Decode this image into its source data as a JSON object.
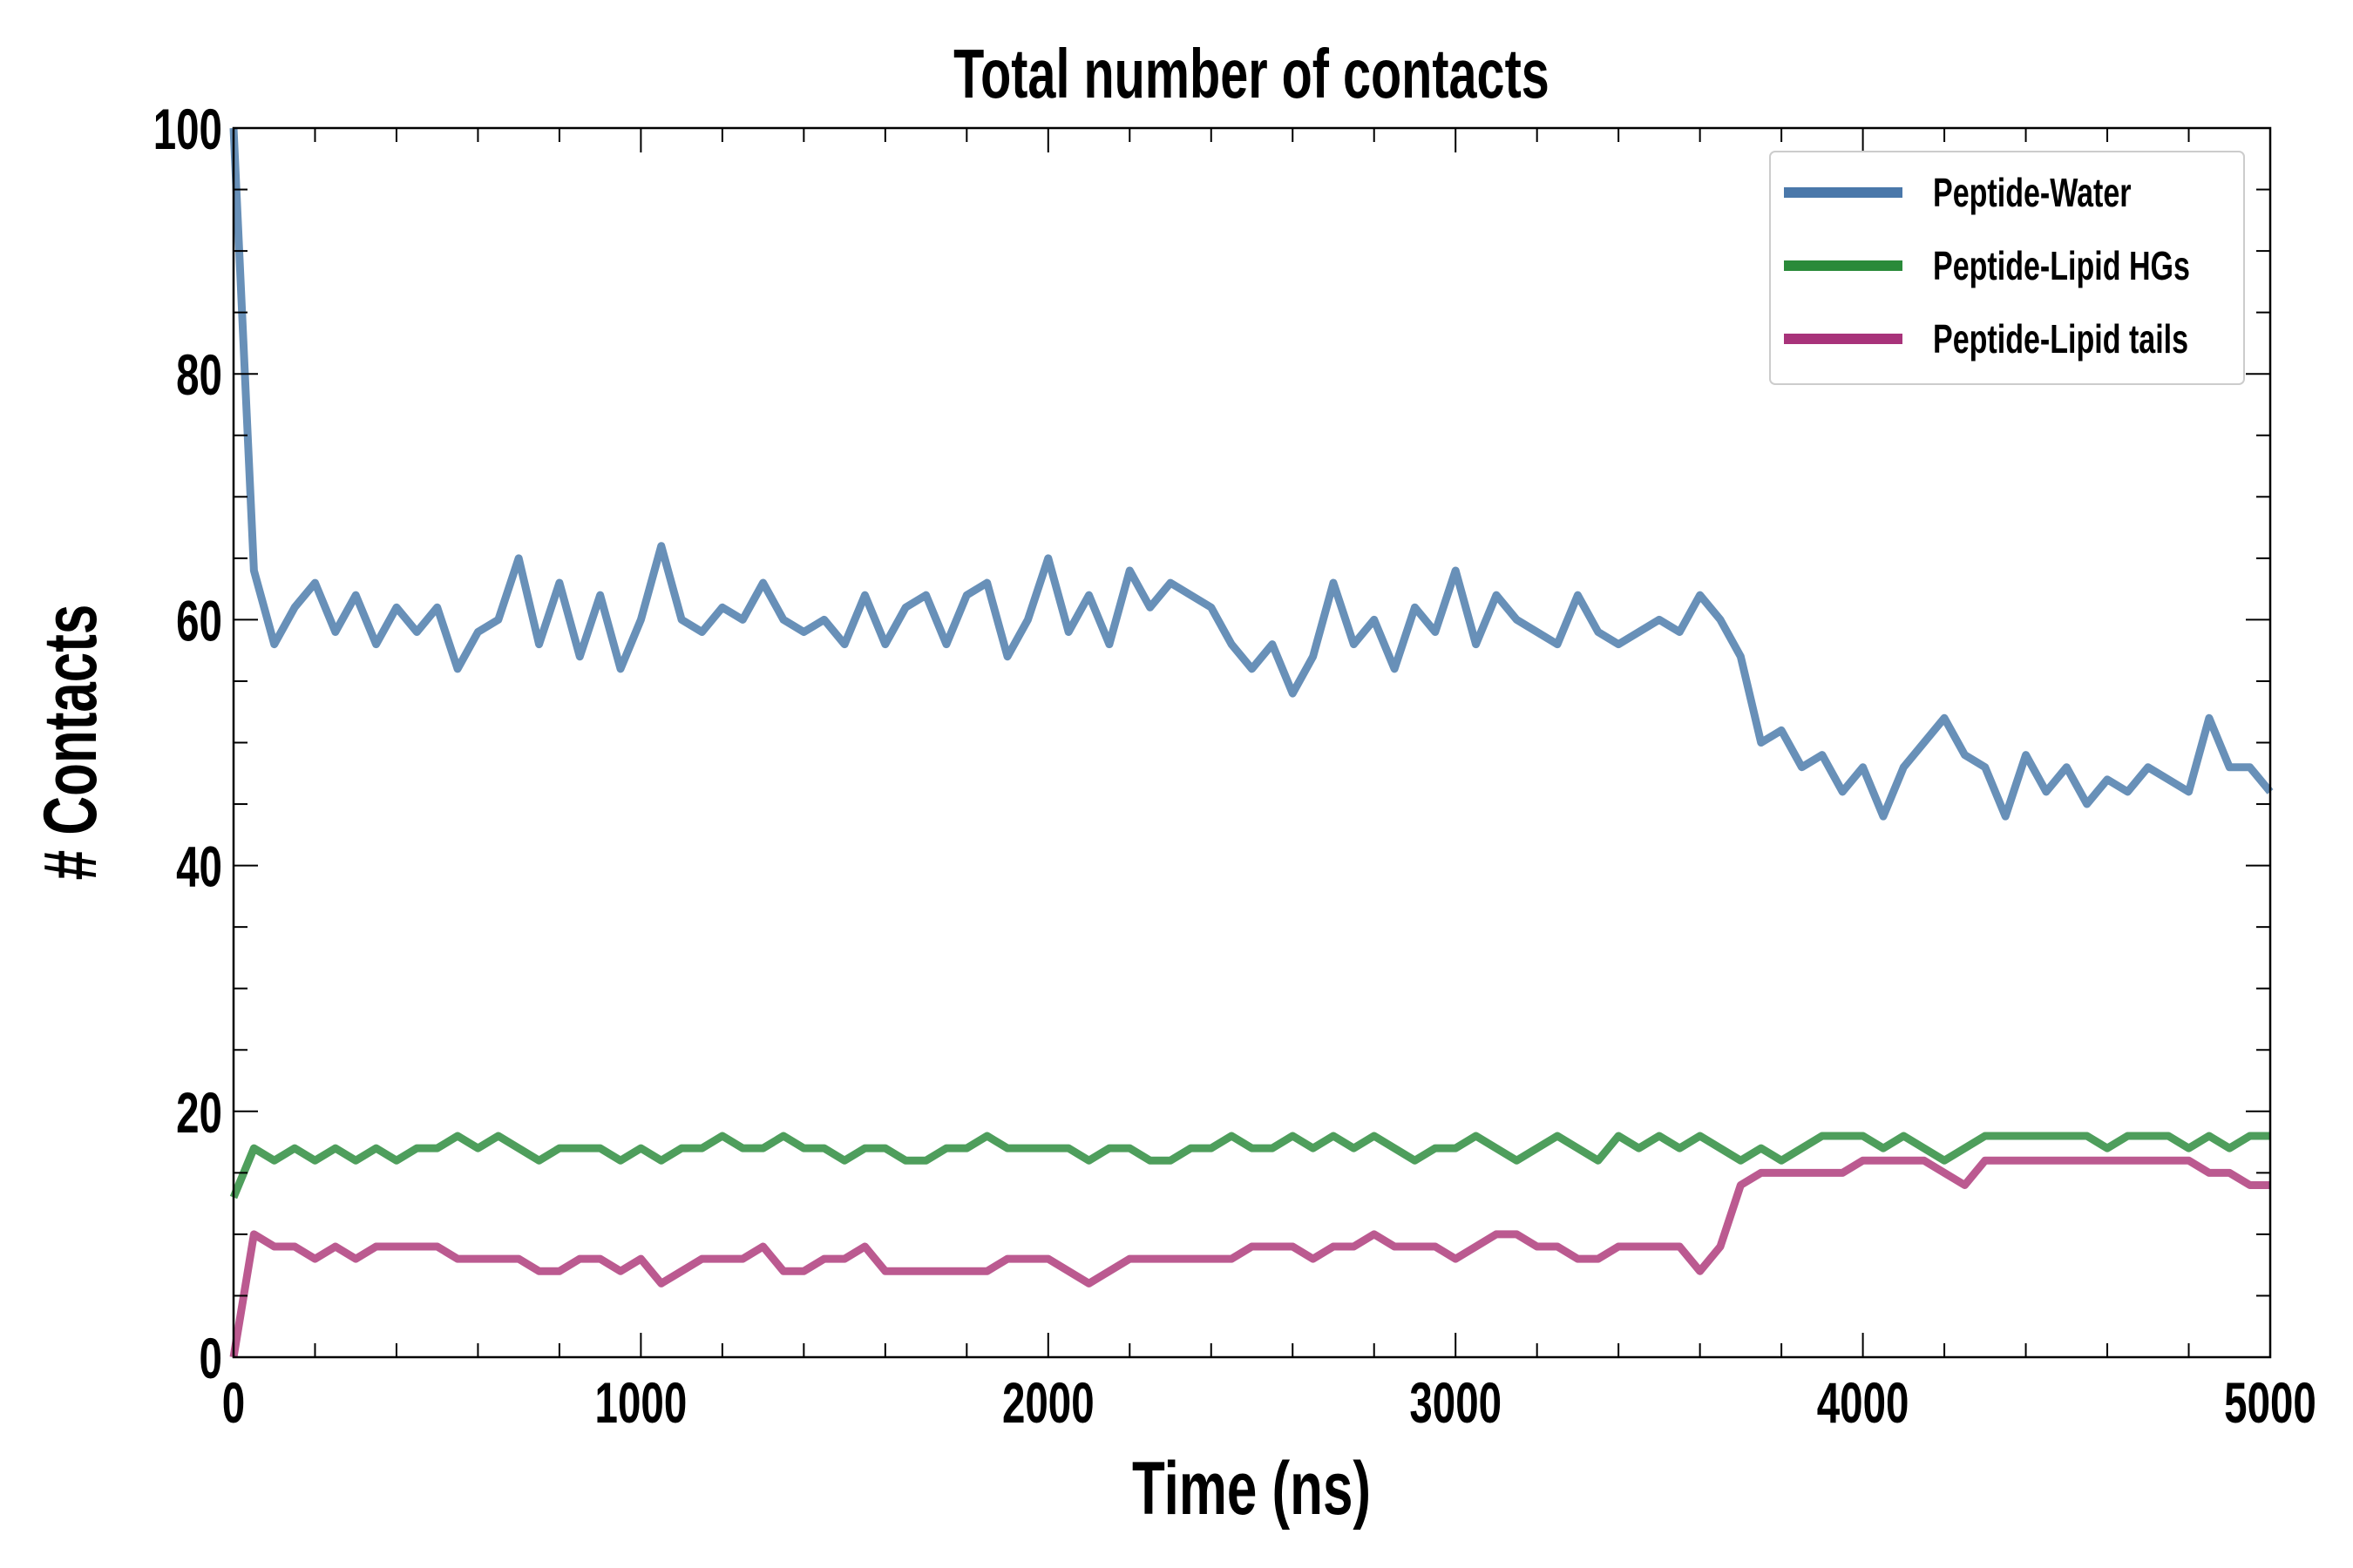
{
  "chart_data": {
    "type": "line",
    "title": "Total number of contacts",
    "xlabel": "Time (ns)",
    "ylabel": "# Contacts",
    "xlim": [
      0,
      5000
    ],
    "ylim": [
      0,
      100
    ],
    "xticks": [
      0,
      1000,
      2000,
      3000,
      4000,
      5000
    ],
    "yticks": [
      0,
      20,
      40,
      60,
      80,
      100
    ],
    "grid": false,
    "legend_position": "top-right",
    "x": [
      0,
      50,
      100,
      150,
      200,
      250,
      300,
      350,
      400,
      450,
      500,
      550,
      600,
      650,
      700,
      750,
      800,
      850,
      900,
      950,
      1000,
      1050,
      1100,
      1150,
      1200,
      1250,
      1300,
      1350,
      1400,
      1450,
      1500,
      1550,
      1600,
      1650,
      1700,
      1750,
      1800,
      1850,
      1900,
      1950,
      2000,
      2050,
      2100,
      2150,
      2200,
      2250,
      2300,
      2350,
      2400,
      2450,
      2500,
      2550,
      2600,
      2650,
      2700,
      2750,
      2800,
      2850,
      2900,
      2950,
      3000,
      3050,
      3100,
      3150,
      3200,
      3250,
      3300,
      3350,
      3400,
      3450,
      3500,
      3550,
      3600,
      3650,
      3700,
      3750,
      3800,
      3850,
      3900,
      3950,
      4000,
      4050,
      4100,
      4150,
      4200,
      4250,
      4300,
      4350,
      4400,
      4450,
      4500,
      4550,
      4600,
      4650,
      4700,
      4750,
      4800,
      4850,
      4900,
      4950,
      5000
    ],
    "series": [
      {
        "name": "Peptide-Water",
        "color": "#4a78aa",
        "line_color": "#6890b8",
        "values": [
          100,
          64,
          58,
          61,
          63,
          59,
          62,
          58,
          61,
          59,
          61,
          56,
          59,
          60,
          65,
          58,
          63,
          57,
          62,
          56,
          60,
          66,
          60,
          59,
          61,
          60,
          63,
          60,
          59,
          60,
          58,
          62,
          58,
          61,
          62,
          58,
          62,
          63,
          57,
          60,
          65,
          59,
          62,
          58,
          64,
          61,
          63,
          62,
          61,
          58,
          56,
          58,
          54,
          57,
          63,
          58,
          60,
          56,
          61,
          59,
          64,
          58,
          62,
          60,
          59,
          58,
          62,
          59,
          58,
          59,
          60,
          59,
          62,
          60,
          57,
          50,
          51,
          48,
          49,
          46,
          48,
          44,
          48,
          50,
          52,
          49,
          48,
          44,
          49,
          46,
          48,
          45,
          47,
          46,
          48,
          47,
          46,
          52,
          48,
          48,
          46
        ]
      },
      {
        "name": "Peptide-Lipid HGs",
        "color": "#2a8a3a",
        "line_color": "#4e9e5c",
        "values": [
          13,
          17,
          16,
          17,
          16,
          17,
          16,
          17,
          16,
          17,
          17,
          18,
          17,
          18,
          17,
          16,
          17,
          17,
          17,
          16,
          17,
          16,
          17,
          17,
          18,
          17,
          17,
          18,
          17,
          17,
          16,
          17,
          17,
          16,
          16,
          17,
          17,
          18,
          17,
          17,
          17,
          17,
          16,
          17,
          17,
          16,
          16,
          17,
          17,
          18,
          17,
          17,
          18,
          17,
          18,
          17,
          18,
          17,
          16,
          17,
          17,
          18,
          17,
          16,
          17,
          18,
          17,
          16,
          18,
          17,
          18,
          17,
          18,
          17,
          16,
          17,
          16,
          17,
          18,
          18,
          18,
          17,
          18,
          17,
          16,
          17,
          18,
          18,
          18,
          18,
          18,
          18,
          17,
          18,
          18,
          18,
          17,
          18,
          17,
          18,
          18
        ]
      },
      {
        "name": "Peptide-Lipid tails",
        "color": "#a8337a",
        "line_color": "#bb5a90",
        "values": [
          0,
          10,
          9,
          9,
          8,
          9,
          8,
          9,
          9,
          9,
          9,
          8,
          8,
          8,
          8,
          7,
          7,
          8,
          8,
          7,
          8,
          6,
          7,
          8,
          8,
          8,
          9,
          7,
          7,
          8,
          8,
          9,
          7,
          7,
          7,
          7,
          7,
          7,
          8,
          8,
          8,
          7,
          6,
          7,
          8,
          8,
          8,
          8,
          8,
          8,
          9,
          9,
          9,
          8,
          9,
          9,
          10,
          9,
          9,
          9,
          8,
          9,
          10,
          10,
          9,
          9,
          8,
          8,
          9,
          9,
          9,
          9,
          7,
          9,
          14,
          15,
          15,
          15,
          15,
          15,
          16,
          16,
          16,
          16,
          15,
          14,
          16,
          16,
          16,
          16,
          16,
          16,
          16,
          16,
          16,
          16,
          16,
          15,
          15,
          14,
          14
        ]
      }
    ]
  }
}
